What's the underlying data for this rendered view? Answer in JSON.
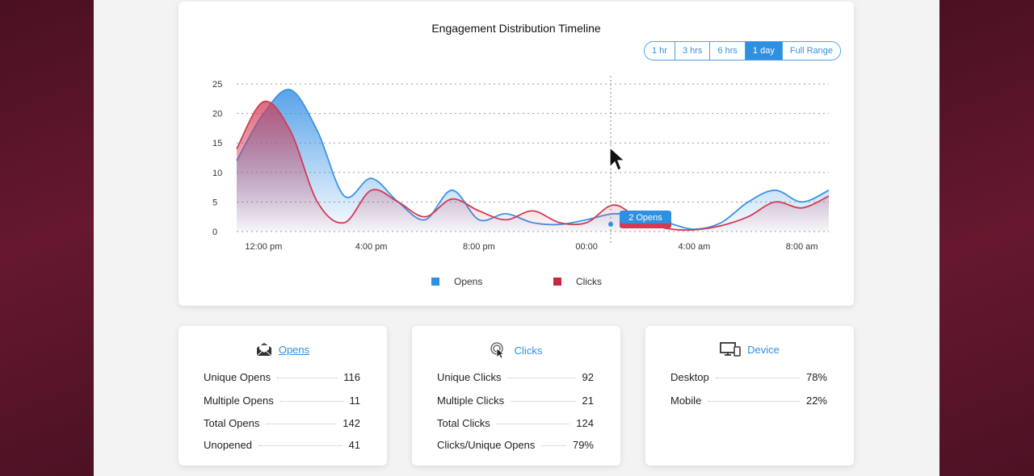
{
  "chart": {
    "title": "Engagement Distribution Timeline",
    "range_buttons": [
      "1 hr",
      "3 hrs",
      "6 hrs",
      "1 day",
      "Full Range"
    ],
    "active_range": "1 day",
    "tooltip": "2  Opens",
    "legend": {
      "opens": "Opens",
      "clicks": "Clicks"
    }
  },
  "chart_data": {
    "type": "area",
    "title": "Engagement Distribution Timeline",
    "xlabel": "",
    "ylabel": "",
    "ylim": [
      0,
      25
    ],
    "y_ticks": [
      "0",
      "5",
      "10",
      "15",
      "20",
      "25"
    ],
    "x_tick_labels": [
      "12:00 pm",
      "4:00 pm",
      "8:00 pm",
      "00:00",
      "4:00 am",
      "8:00 am"
    ],
    "x_ticks_hours": [
      0,
      4,
      8,
      12,
      16,
      20
    ],
    "x_range_hours": [
      -1,
      21
    ],
    "grid": true,
    "legend_position": "bottom",
    "series": [
      {
        "name": "Opens",
        "color": "#3a93e6",
        "x": [
          -1,
          0,
          1,
          2,
          3,
          4,
          5,
          6,
          7,
          8,
          9,
          10,
          11,
          12,
          13,
          14,
          15,
          16,
          17,
          18,
          19,
          20,
          21
        ],
        "values": [
          12,
          20,
          24,
          17,
          6,
          9,
          5,
          2,
          7,
          2,
          3,
          1.5,
          1.2,
          2,
          3,
          2.5,
          1.5,
          0.4,
          1.5,
          5,
          7,
          5,
          7
        ]
      },
      {
        "name": "Clicks",
        "color": "#d03c54",
        "x": [
          -1,
          0,
          1,
          2,
          3,
          4,
          5,
          6,
          7,
          8,
          9,
          10,
          11,
          12,
          13,
          14,
          15,
          16,
          17,
          18,
          19,
          20,
          21
        ],
        "values": [
          14,
          22,
          17,
          5,
          1.5,
          7,
          5,
          2.5,
          5.5,
          3.5,
          2,
          3.5,
          1.5,
          1.5,
          4.5,
          2,
          0.5,
          0.3,
          1,
          2.5,
          5,
          4,
          6
        ]
      }
    ]
  },
  "opens_card": {
    "title": "Opens",
    "rows": [
      {
        "label": "Unique Opens",
        "value": "116"
      },
      {
        "label": "Multiple Opens",
        "value": "11"
      },
      {
        "label": "Total Opens",
        "value": "142"
      },
      {
        "label": "Unopened",
        "value": "41"
      }
    ]
  },
  "clicks_card": {
    "title": "Clicks",
    "rows": [
      {
        "label": "Unique Clicks",
        "value": "92"
      },
      {
        "label": "Multiple Clicks",
        "value": "21"
      },
      {
        "label": "Total Clicks",
        "value": "124"
      },
      {
        "label": "Clicks/Unique Opens",
        "value": "79%"
      }
    ]
  },
  "device_card": {
    "title": "Device",
    "rows": [
      {
        "label": "Desktop",
        "value": "78%"
      },
      {
        "label": "Mobile",
        "value": "22%"
      }
    ]
  },
  "colors": {
    "accent": "#2f8fe0",
    "opens": "#3a93e6",
    "clicks": "#d03c54",
    "backdrop": "#5a1428"
  },
  "icons": {
    "opens": "envelope-open-icon",
    "clicks": "cursor-click-icon",
    "device": "monitor-phone-icon",
    "pointer": "mouse-pointer-icon"
  }
}
